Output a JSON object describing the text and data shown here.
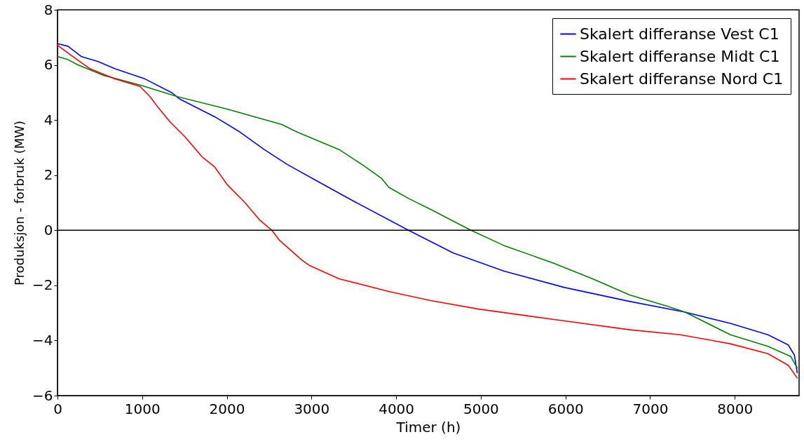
{
  "chart_data": {
    "type": "line",
    "xlabel": "Timer (h)",
    "ylabel": "Produksjon - forbruk (MW)",
    "x": [
      0,
      124,
      285,
      475,
      680,
      1035,
      1352,
      1445,
      1857,
      2153,
      2442,
      2713,
      3035,
      3471,
      4146,
      4672,
      5274,
      5981,
      6755,
      7413,
      7948,
      8392,
      8632,
      8705,
      8738
    ],
    "series": [
      {
        "name": "Skalert differanse Vest C1",
        "color": "#0000ff",
        "values": [
          6.77,
          6.68,
          6.3,
          6.13,
          5.86,
          5.49,
          4.99,
          4.76,
          4.12,
          3.57,
          2.93,
          2.39,
          1.84,
          1.1,
          0.0,
          -0.82,
          -1.48,
          -2.07,
          -2.58,
          -2.97,
          -3.38,
          -3.79,
          -4.16,
          -4.53,
          -5.17
        ]
      },
      {
        "name": "Skalert differanse Midt C1",
        "color": "#008000",
        "x": [
          0,
          124,
          242,
          535,
          975,
          1416,
          2004,
          2650,
          2826,
          3326,
          3620,
          3826,
          3914,
          4149,
          4408,
          4883,
          5271,
          5866,
          6311,
          6759,
          7208,
          7413,
          7948,
          8392,
          8662,
          8738
        ],
        "values": [
          6.31,
          6.19,
          6.0,
          5.63,
          5.27,
          4.85,
          4.4,
          3.84,
          3.57,
          2.93,
          2.34,
          1.89,
          1.56,
          1.15,
          0.76,
          0.0,
          -0.55,
          -1.2,
          -1.75,
          -2.35,
          -2.76,
          -2.97,
          -3.79,
          -4.21,
          -4.58,
          -5.0
        ]
      },
      {
        "name": "Skalert differanse Nord C1",
        "color": "#ff0000",
        "x": [
          0,
          179,
          385,
          680,
          975,
          1093,
          1181,
          1328,
          1504,
          1710,
          1857,
          2004,
          2210,
          2386,
          2533,
          2621,
          2885,
          2973,
          3327,
          3911,
          4408,
          4973,
          5866,
          6759,
          7356,
          7948,
          8392,
          8632,
          8738
        ],
        "values": [
          6.72,
          6.31,
          5.86,
          5.49,
          5.22,
          4.85,
          4.49,
          3.94,
          3.4,
          2.66,
          2.3,
          1.66,
          1.02,
          0.38,
          0.0,
          -0.36,
          -1.08,
          -1.27,
          -1.76,
          -2.22,
          -2.55,
          -2.86,
          -3.24,
          -3.61,
          -3.79,
          -4.12,
          -4.48,
          -4.9,
          -5.36
        ]
      }
    ],
    "xlim": [
      0,
      8760
    ],
    "xticks": [
      0,
      1000,
      2000,
      3000,
      4000,
      5000,
      6000,
      7000,
      8000
    ],
    "ylim": [
      -6,
      8
    ],
    "yticks": [
      -6,
      -4,
      -2,
      0,
      2,
      4,
      6,
      8
    ],
    "ref_lines": [
      {
        "axis": "y",
        "value": 0,
        "color": "#000000"
      }
    ],
    "grid": false,
    "legend": "top right",
    "line_style": "solid",
    "marker": "none"
  }
}
